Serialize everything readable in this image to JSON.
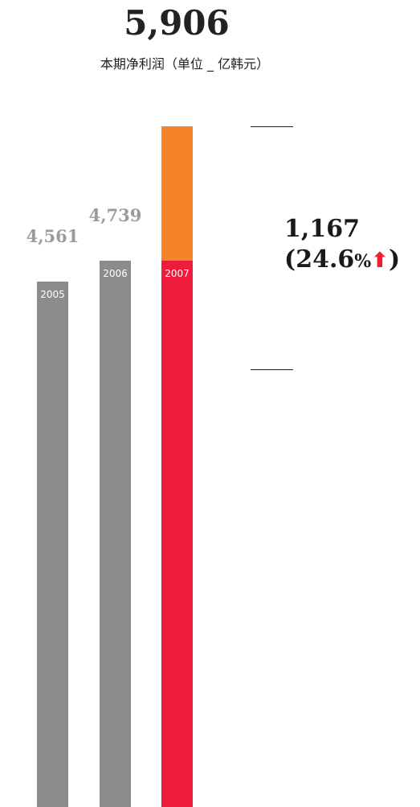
{
  "headline": "5,906",
  "subtitle": "本期净利润（单位 _ 亿韩元）",
  "difference": {
    "value": "1,167",
    "percent": "(24.6",
    "percent_sign": "%",
    "closing": ")"
  },
  "colors": {
    "gray": "#8c8c8e",
    "red": "#ee1b3b",
    "orange": "#f5832a",
    "value_label_gray": "#9b9b9b",
    "arrow": "#e8203a"
  },
  "chart_data": {
    "type": "bar",
    "categories": [
      "2005",
      "2006",
      "2007"
    ],
    "values": [
      4561,
      4739,
      5906
    ],
    "value_labels": [
      "4,561",
      "4,739",
      ""
    ],
    "stacked_2007": {
      "base": 4739,
      "increase": 1167
    }
  }
}
